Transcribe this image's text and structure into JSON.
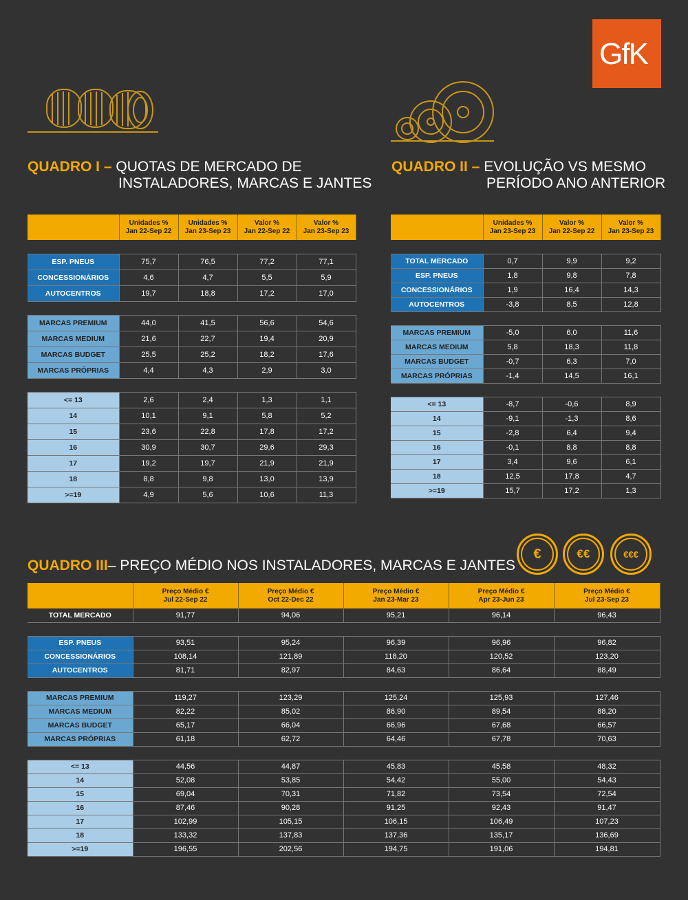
{
  "logo": {
    "text": "GfK"
  },
  "q1": {
    "title_bold": "QUADRO I",
    "title_dash": " – ",
    "title_line1": "QUOTAS DE MERCADO DE",
    "title_line2": "INSTALADORES, MARCAS E JANTES",
    "headers": [
      "Unidades %\nJan 22-Sep 22",
      "Unidades %\nJan 23-Sep 23",
      "Valor %\nJan 22-Sep 22",
      "Valor %\nJan 23-Sep 23"
    ],
    "groups": [
      {
        "style": "dark",
        "rows": [
          {
            "label": "ESP. PNEUS",
            "values": [
              "75,7",
              "76,5",
              "77,2",
              "77,1"
            ]
          },
          {
            "label": "CONCESSIONÁRIOS",
            "values": [
              "4,6",
              "4,7",
              "5,5",
              "5,9"
            ]
          },
          {
            "label": "AUTOCENTROS",
            "values": [
              "19,7",
              "18,8",
              "17,2",
              "17,0"
            ]
          }
        ]
      },
      {
        "style": "med",
        "rows": [
          {
            "label": "MARCAS PREMIUM",
            "values": [
              "44,0",
              "41,5",
              "56,6",
              "54,6"
            ]
          },
          {
            "label": "MARCAS MEDIUM",
            "values": [
              "21,6",
              "22,7",
              "19,4",
              "20,9"
            ]
          },
          {
            "label": "MARCAS BUDGET",
            "values": [
              "25,5",
              "25,2",
              "18,2",
              "17,6"
            ]
          },
          {
            "label": "MARCAS PRÓPRIAS",
            "values": [
              "4,4",
              "4,3",
              "2,9",
              "3,0"
            ]
          }
        ]
      },
      {
        "style": "light",
        "rows": [
          {
            "label": "<= 13",
            "values": [
              "2,6",
              "2,4",
              "1,3",
              "1,1"
            ]
          },
          {
            "label": "14",
            "values": [
              "10,1",
              "9,1",
              "5,8",
              "5,2"
            ]
          },
          {
            "label": "15",
            "values": [
              "23,6",
              "22,8",
              "17,8",
              "17,2"
            ]
          },
          {
            "label": "16",
            "values": [
              "30,9",
              "30,7",
              "29,6",
              "29,3"
            ]
          },
          {
            "label": "17",
            "values": [
              "19,2",
              "19,7",
              "21,9",
              "21,9"
            ]
          },
          {
            "label": "18",
            "values": [
              "8,8",
              "9,8",
              "13,0",
              "13,9"
            ]
          },
          {
            "label": ">=19",
            "values": [
              "4,9",
              "5,6",
              "10,6",
              "11,3"
            ]
          }
        ]
      }
    ]
  },
  "q2": {
    "title_bold": "QUADRO II",
    "title_dash": " – ",
    "title_line1": "EVOLUÇÃO VS MESMO",
    "title_line2": "PERÍODO ANO ANTERIOR",
    "headers": [
      "Unidades %\nJan 23-Sep 23",
      "Valor %\nJan 22-Sep 22",
      "Valor %\nJan 23-Sep 23"
    ],
    "groups": [
      {
        "style": "dark",
        "rows": [
          {
            "label": "TOTAL MERCADO",
            "values": [
              "0,7",
              "9,9",
              "9,2"
            ]
          },
          {
            "label": "ESP. PNEUS",
            "values": [
              "1,8",
              "9,8",
              "7,8"
            ]
          },
          {
            "label": "CONCESSIONÁRIOS",
            "values": [
              "1,9",
              "16,4",
              "14,3"
            ]
          },
          {
            "label": "AUTOCENTROS",
            "values": [
              "-3,8",
              "8,5",
              "12,8"
            ]
          }
        ]
      },
      {
        "style": "med",
        "rows": [
          {
            "label": "MARCAS PREMIUM",
            "values": [
              "-5,0",
              "6,0",
              "11,6"
            ]
          },
          {
            "label": "MARCAS MEDIUM",
            "values": [
              "5,8",
              "18,3",
              "11,8"
            ]
          },
          {
            "label": "MARCAS BUDGET",
            "values": [
              "-0,7",
              "6,3",
              "7,0"
            ]
          },
          {
            "label": "MARCAS PRÓPRIAS",
            "values": [
              "-1,4",
              "14,5",
              "16,1"
            ]
          }
        ]
      },
      {
        "style": "light",
        "rows": [
          {
            "label": "<= 13",
            "values": [
              "-8,7",
              "-0,6",
              "8,9"
            ]
          },
          {
            "label": "14",
            "values": [
              "-9,1",
              "-1,3",
              "8,6"
            ]
          },
          {
            "label": "15",
            "values": [
              "-2,8",
              "6,4",
              "9,4"
            ]
          },
          {
            "label": "16",
            "values": [
              "-0,1",
              "8,8",
              "8,8"
            ]
          },
          {
            "label": "17",
            "values": [
              "3,4",
              "9,6",
              "6,1"
            ]
          },
          {
            "label": "18",
            "values": [
              "12,5",
              "17,8",
              "4,7"
            ]
          },
          {
            "label": ">=19",
            "values": [
              "15,7",
              "17,2",
              "1,3"
            ]
          }
        ]
      }
    ]
  },
  "q3": {
    "title_bold": "QUADRO III",
    "title_dash": "– ",
    "title_line1": "PREÇO MÉDIO NOS INSTALADORES, MARCAS E JANTES",
    "coins": [
      "€",
      "€€",
      "€€€"
    ],
    "headers": [
      "Preço Médio €\nJul 22-Sep 22",
      "Preço Médio €\nOct 22-Dec 22",
      "Preço Médio €\nJan 23-Mar 23",
      "Preço Médio €\nApr 23-Jun 23",
      "Preço Médio €\nJul 23-Sep 23"
    ],
    "total": {
      "label": "TOTAL MERCADO",
      "values": [
        "91,77",
        "94,06",
        "95,21",
        "96,14",
        "96,43"
      ]
    },
    "groups": [
      {
        "style": "dark",
        "rows": [
          {
            "label": "ESP. PNEUS",
            "values": [
              "93,51",
              "95,24",
              "96,39",
              "96,96",
              "96,82"
            ]
          },
          {
            "label": "CONCESSIONÁRIOS",
            "values": [
              "108,14",
              "121,89",
              "118,20",
              "120,52",
              "123,20"
            ]
          },
          {
            "label": "AUTOCENTROS",
            "values": [
              "81,71",
              "82,97",
              "84,63",
              "86,64",
              "88,49"
            ]
          }
        ]
      },
      {
        "style": "med",
        "rows": [
          {
            "label": "MARCAS PREMIUM",
            "values": [
              "119,27",
              "123,29",
              "125,24",
              "125,93",
              "127,46"
            ]
          },
          {
            "label": "MARCAS MEDIUM",
            "values": [
              "82,22",
              "85,02",
              "86,90",
              "89,54",
              "88,20"
            ]
          },
          {
            "label": "MARCAS BUDGET",
            "values": [
              "65,17",
              "66,04",
              "66,96",
              "67,68",
              "66,57"
            ]
          },
          {
            "label": "MARCAS PRÓPRIAS",
            "values": [
              "61,18",
              "62,72",
              "64,46",
              "67,78",
              "70,63"
            ]
          }
        ]
      },
      {
        "style": "light",
        "rows": [
          {
            "label": "<= 13",
            "values": [
              "44,56",
              "44,87",
              "45,83",
              "45,58",
              "48,32"
            ]
          },
          {
            "label": "14",
            "values": [
              "52,08",
              "53,85",
              "54,42",
              "55,00",
              "54,43"
            ]
          },
          {
            "label": "15",
            "values": [
              "69,04",
              "70,31",
              "71,82",
              "73,54",
              "72,54"
            ]
          },
          {
            "label": "16",
            "values": [
              "87,46",
              "90,28",
              "91,25",
              "92,43",
              "91,47"
            ]
          },
          {
            "label": "17",
            "values": [
              "102,99",
              "105,15",
              "106,15",
              "106,49",
              "107,23"
            ]
          },
          {
            "label": "18",
            "values": [
              "133,32",
              "137,83",
              "137,36",
              "135,17",
              "136,69"
            ]
          },
          {
            "label": ">=19",
            "values": [
              "196,55",
              "202,56",
              "194,75",
              "191,06",
              "194,81"
            ]
          }
        ]
      }
    ]
  }
}
